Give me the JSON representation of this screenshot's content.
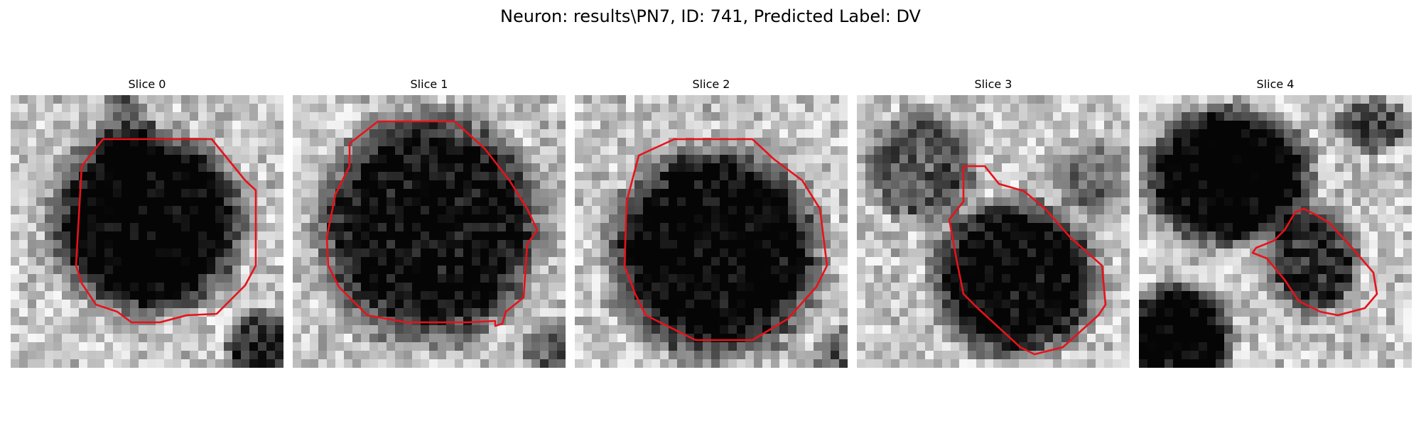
{
  "figure": {
    "title": "Neuron: results\\PN7, ID: 741, Predicted Label: DV"
  },
  "colors": {
    "contour": "#e8121a"
  },
  "slices": [
    {
      "label": "Slice 0"
    },
    {
      "label": "Slice 1"
    },
    {
      "label": "Slice 2"
    },
    {
      "label": "Slice 3"
    },
    {
      "label": "Slice 4"
    }
  ]
}
